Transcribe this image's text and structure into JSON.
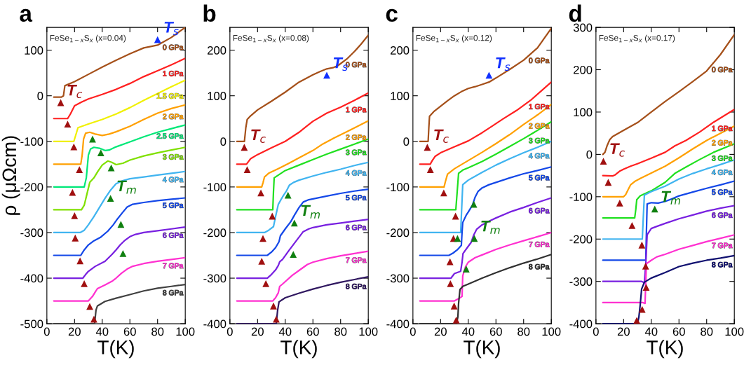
{
  "chart_data": [
    {
      "type": "line",
      "title": "a",
      "xlabel": "T(K)",
      "ylabel": "ρ (μΩcm)",
      "xlim": [
        0,
        100
      ],
      "xticks": [
        0,
        20,
        40,
        60,
        80,
        100
      ],
      "ylim": [
        -500,
        150
      ],
      "yticks": [
        -500,
        -400,
        -300,
        -200,
        -100,
        0,
        100
      ],
      "annotations": [
        "FeSe$_{1−x}$S$_{x}$ (x=0.04)"
      ],
      "series": [
        {
          "name": "0 GPa",
          "color": "#a5501a",
          "x": [
            5,
            10.5,
            12,
            13,
            20,
            30,
            40,
            50,
            60,
            70,
            80,
            90,
            100
          ],
          "values": [
            -3,
            -3,
            0,
            22,
            31,
            47,
            63,
            78,
            92,
            105,
            111,
            128,
            150
          ]
        },
        {
          "name": "1 GPa",
          "color": "#ff2020",
          "x": [
            5,
            15,
            17,
            20,
            25,
            30,
            40,
            50,
            60,
            70,
            80,
            90,
            100
          ],
          "values": [
            -50,
            -50,
            -40,
            -22,
            -14,
            -7,
            3,
            14,
            27,
            42,
            55,
            68,
            82
          ]
        },
        {
          "name": "1.5 GPa",
          "color": "#f0f000",
          "x": [
            5,
            19.5,
            21,
            22.5,
            30,
            40,
            50,
            60,
            70,
            80,
            90,
            100
          ],
          "values": [
            -100,
            -100,
            -85,
            -70,
            -62,
            -52,
            -40,
            -26,
            -10,
            5,
            20,
            34
          ]
        },
        {
          "name": "2 GPa",
          "color": "#ffa000",
          "x": [
            5,
            24.5,
            25.5,
            26.5,
            28,
            31,
            35,
            40,
            45,
            50,
            60,
            70,
            80,
            90,
            100
          ],
          "values": [
            -150,
            -150,
            -130,
            -95,
            -82,
            -80,
            -84,
            -87,
            -84,
            -79,
            -67,
            -52,
            -38,
            -28,
            -20
          ]
        },
        {
          "name": "2.5 GPa",
          "color": "#00e878",
          "x": [
            5,
            27,
            28.5,
            30,
            31.5,
            34,
            38,
            42,
            45,
            50,
            60,
            70,
            80,
            90,
            100
          ],
          "values": [
            -200,
            -200,
            -180,
            -130,
            -117,
            -113,
            -115,
            -120,
            -119,
            -112,
            -101,
            -90,
            -80,
            -72,
            -64
          ]
        },
        {
          "name": "3 GPa",
          "color": "#80e000",
          "x": [
            5,
            25,
            27,
            29,
            31,
            34,
            37,
            40,
            44,
            47,
            50,
            55,
            60,
            70,
            80,
            90,
            100
          ],
          "values": [
            -250,
            -250,
            -240,
            -215,
            -190,
            -180,
            -165,
            -152,
            -143,
            -146,
            -151,
            -148,
            -141,
            -132,
            -125,
            -119,
            -113
          ]
        },
        {
          "name": "4 GPa",
          "color": "#40b4f0",
          "x": [
            5,
            24,
            27,
            30,
            34,
            37,
            42,
            46,
            50,
            55,
            60,
            70,
            80,
            90,
            100
          ],
          "values": [
            -300,
            -300,
            -295,
            -283,
            -265,
            -250,
            -225,
            -207,
            -193,
            -186,
            -182,
            -178,
            -174,
            -170,
            -166
          ]
        },
        {
          "name": "5 GPa",
          "color": "#1448e8",
          "x": [
            5,
            24.5,
            27,
            30,
            34,
            39,
            44,
            48,
            51,
            55,
            58,
            62,
            70,
            80,
            90,
            100
          ],
          "values": [
            -350,
            -350,
            -338,
            -327,
            -318,
            -310,
            -297,
            -283,
            -270,
            -255,
            -244,
            -238,
            -234,
            -230,
            -227,
            -224
          ]
        },
        {
          "name": "6 GPa",
          "color": "#7820e0",
          "x": [
            5,
            26,
            28,
            30,
            35,
            42,
            47,
            50,
            53,
            56,
            60,
            64,
            70,
            80,
            90,
            100
          ],
          "values": [
            -400,
            -400,
            -392,
            -385,
            -374,
            -363,
            -348,
            -338,
            -327,
            -318,
            -309,
            -304,
            -300,
            -296,
            -292,
            -288
          ]
        },
        {
          "name": "7 GPa",
          "color": "#ff30d0",
          "x": [
            5,
            30,
            33,
            35,
            36.5,
            42,
            47,
            50,
            54,
            58,
            62,
            70,
            80,
            90,
            100
          ],
          "values": [
            -450,
            -450,
            -440,
            -430,
            -423,
            -415,
            -407,
            -400,
            -389,
            -380,
            -374,
            -368,
            -363,
            -359,
            -355
          ]
        },
        {
          "name": "8 GPa",
          "color": "#404040",
          "x": [
            5,
            34.5,
            35.5,
            36.5,
            42,
            50,
            60,
            70,
            80,
            90,
            100
          ],
          "values": [
            -500,
            -500,
            -470,
            -461,
            -451,
            -444,
            -436,
            -428,
            -422,
            -418,
            -414
          ]
        },
        {
          "type": "scatter",
          "marker": "triangle",
          "color": "#a01010",
          "name": "T$_{c}$",
          "x": [
            10,
            15,
            19.5,
            23.5,
            18.5,
            20,
            20.5,
            24,
            27,
            31,
            34
          ],
          "values": [
            -15,
            -62,
            -112,
            -162,
            -212,
            -263,
            -312,
            -362,
            -412,
            -462,
            -490
          ]
        },
        {
          "type": "scatter",
          "marker": "triangle",
          "color": "#108010",
          "name": "T$_{m}$",
          "x": [
            46,
            33,
            39,
            46.5,
            53.5,
            55
          ],
          "values": [
            -225,
            -95,
            -125,
            -158,
            -282,
            -346
          ]
        },
        {
          "type": "scatter",
          "marker": "triangle",
          "color": "#1030ff",
          "name": "T$_{s}$",
          "x": [
            80
          ],
          "values": [
            123
          ]
        }
      ]
    },
    {
      "type": "line",
      "title": "b",
      "xlabel": "T(K)",
      "xlim": [
        0,
        100
      ],
      "xticks": [
        0,
        20,
        40,
        60,
        80,
        100
      ],
      "ylim": [
        -400,
        250
      ],
      "yticks": [
        -400,
        -300,
        -200,
        -100,
        0,
        100,
        200
      ],
      "annotations": [
        "FeSe$_{1−x}$S$_{x}$ (x=0.08)"
      ],
      "series": [
        {
          "name": "0 GPa",
          "color": "#a5501a",
          "x": [
            5,
            10.5,
            11.5,
            12.5,
            15,
            20,
            30,
            40,
            50,
            60,
            65,
            70,
            75,
            78,
            85,
            90,
            95,
            100
          ],
          "values": [
            0,
            0,
            30,
            48,
            56,
            69,
            88,
            108,
            130,
            146,
            153,
            159,
            162,
            166,
            182,
            197,
            214,
            233
          ]
        },
        {
          "name": "1 GPa",
          "color": "#ff2020",
          "x": [
            5,
            12,
            13.5,
            15,
            20,
            30,
            40,
            50,
            55,
            60,
            70,
            80,
            90,
            100
          ],
          "values": [
            -50,
            -50,
            -44,
            -38,
            -29,
            -14,
            0,
            20,
            32,
            44,
            62,
            75,
            90,
            106
          ]
        },
        {
          "name": "2 GPa",
          "color": "#ffa000",
          "x": [
            5,
            23,
            24,
            25,
            28,
            35,
            42,
            50,
            60,
            67,
            75,
            85,
            100
          ],
          "values": [
            -100,
            -100,
            -90,
            -78,
            -70,
            -60,
            -49,
            -36,
            -20,
            -6,
            7,
            22,
            45
          ]
        },
        {
          "name": "3 GPa",
          "color": "#20e020",
          "x": [
            5,
            31,
            31.5,
            32,
            40,
            50,
            60,
            70,
            80,
            90,
            100
          ],
          "values": [
            -150,
            -150,
            -110,
            -80,
            -64,
            -52,
            -40,
            -28,
            -17,
            -6,
            5
          ]
        },
        {
          "name": "4 GPa",
          "color": "#40b4f0",
          "x": [
            5,
            25,
            28,
            31.5,
            33,
            35,
            38,
            41,
            43,
            46,
            50,
            60,
            70,
            80,
            90,
            100
          ],
          "values": [
            -200,
            -200,
            -195,
            -187,
            -165,
            -138,
            -122,
            -108,
            -96,
            -90,
            -85,
            -76,
            -68,
            -61,
            -53,
            -46
          ]
        },
        {
          "name": "5 GPa",
          "color": "#1448e8",
          "x": [
            5,
            27,
            30,
            33,
            35.5,
            36.5,
            40,
            44,
            47,
            50,
            53,
            57,
            70,
            80,
            90,
            100
          ],
          "values": [
            -250,
            -250,
            -243,
            -233,
            -220,
            -207,
            -192,
            -176,
            -160,
            -145,
            -133,
            -128,
            -120,
            -114,
            -109,
            -105
          ]
        },
        {
          "name": "6 GPa",
          "color": "#7820e0",
          "x": [
            5,
            27,
            30,
            33,
            35,
            36,
            38,
            43,
            48,
            53,
            57,
            60,
            70,
            80,
            90,
            100
          ],
          "values": [
            -300,
            -300,
            -292,
            -282,
            -272,
            -264,
            -259,
            -238,
            -218,
            -198,
            -192,
            -189,
            -183,
            -179,
            -175,
            -171
          ]
        },
        {
          "name": "7 GPa",
          "color": "#ff30d0",
          "x": [
            5,
            31,
            33,
            35,
            36,
            38,
            45,
            50,
            56,
            60,
            70,
            80,
            90,
            100
          ],
          "values": [
            -350,
            -350,
            -343,
            -332,
            -318,
            -313,
            -294,
            -283,
            -270,
            -265,
            -257,
            -251,
            -246,
            -241
          ]
        },
        {
          "name": "8 GPa",
          "color": "#301860",
          "x": [
            5,
            33.5,
            34.5,
            35.5,
            40,
            50,
            60,
            70,
            80,
            90,
            100
          ],
          "values": [
            -400,
            -400,
            -370,
            -352,
            -343,
            -333,
            -324,
            -316,
            -309,
            -303,
            -297
          ]
        },
        {
          "type": "scatter",
          "marker": "triangle",
          "color": "#a01010",
          "name": "T$_{c}$",
          "x": [
            10.4,
            12.5,
            22.4,
            30.6,
            23.9,
            23,
            26,
            31.5,
            33.5
          ],
          "values": [
            -13,
            -62,
            -113,
            -164,
            -213,
            -263,
            -312,
            -361,
            -390
          ]
        },
        {
          "type": "scatter",
          "marker": "triangle",
          "color": "#108010",
          "name": "T$_{m}$",
          "x": [
            46.6,
            42,
            45.8
          ],
          "values": [
            -179,
            -118,
            -248
          ]
        },
        {
          "type": "scatter",
          "marker": "triangle",
          "color": "#1030ff",
          "name": "T$_{s}$",
          "x": [
            70
          ],
          "values": [
            145
          ]
        }
      ]
    },
    {
      "type": "line",
      "title": "c",
      "xlabel": "T(K)",
      "xlim": [
        0,
        100
      ],
      "xticks": [
        0,
        20,
        40,
        60,
        80,
        100
      ],
      "ylim": [
        -400,
        250
      ],
      "yticks": [
        -400,
        -300,
        -200,
        -100,
        0,
        100,
        200
      ],
      "annotations": [
        "FeSe$_{1−x}$S$_{x}$ (x=0.12)"
      ],
      "series": [
        {
          "name": "0 GPa",
          "color": "#a5501a",
          "x": [
            5,
            11,
            11.5,
            12,
            15,
            20,
            25,
            30,
            35,
            40,
            45,
            50,
            55,
            60,
            70,
            80,
            90,
            100
          ],
          "values": [
            0,
            0,
            30,
            55,
            65,
            77,
            89,
            100,
            109,
            116,
            120,
            125,
            130,
            139,
            158,
            178,
            205,
            248
          ]
        },
        {
          "name": "1 GPa",
          "color": "#ff2020",
          "x": [
            5,
            12.5,
            14,
            16,
            20,
            30,
            40,
            50,
            57,
            65,
            75,
            85,
            100
          ],
          "values": [
            -50,
            -50,
            -42,
            -33,
            -25,
            -12,
            1,
            19,
            33,
            49,
            68,
            90,
            130
          ]
        },
        {
          "name": "2 GPa",
          "color": "#ffa000",
          "x": [
            5,
            22.5,
            23.5,
            25,
            30,
            40,
            50,
            60,
            70,
            80,
            90,
            100
          ],
          "values": [
            -100,
            -100,
            -88,
            -72,
            -60,
            -42,
            -24,
            -5,
            15,
            37,
            58,
            81
          ]
        },
        {
          "name": "3 GPa",
          "color": "#20e020",
          "x": [
            5,
            31,
            32,
            33,
            36,
            40,
            50,
            60,
            70,
            80,
            90,
            100
          ],
          "values": [
            -150,
            -150,
            -110,
            -70,
            -63,
            -58,
            -44,
            -28,
            -11,
            6,
            24,
            43
          ]
        },
        {
          "name": "4 GPa",
          "color": "#40b4f0",
          "x": [
            5,
            34.5,
            35.2,
            36,
            40,
            50,
            60,
            70,
            80,
            90,
            100
          ],
          "values": [
            -200,
            -200,
            -150,
            -95,
            -85,
            -68,
            -52,
            -38,
            -25,
            -13,
            0
          ]
        },
        {
          "name": "5 GPa",
          "color": "#1448e8",
          "x": [
            5,
            26,
            29,
            32,
            35,
            35.5,
            36,
            38.5,
            40,
            43,
            45,
            47,
            50,
            55,
            60,
            70,
            80,
            90,
            100
          ],
          "values": [
            -250,
            -250,
            -245,
            -238,
            -228,
            -200,
            -178,
            -162,
            -155,
            -140,
            -122,
            -110,
            -102,
            -95,
            -90,
            -80,
            -71,
            -64,
            -56
          ]
        },
        {
          "name": "6 GPa",
          "color": "#7820e0",
          "x": [
            5,
            27.5,
            30,
            34.5,
            35.5,
            36.2,
            40,
            42,
            44,
            46,
            50,
            55,
            60,
            70,
            80,
            90,
            100
          ],
          "values": [
            -300,
            -300,
            -290,
            -285,
            -265,
            -246,
            -230,
            -222,
            -205,
            -193,
            -183,
            -175,
            -168,
            -155,
            -145,
            -134,
            -124
          ]
        },
        {
          "name": "7 GPa",
          "color": "#ff30d0",
          "x": [
            5,
            30,
            33,
            35.5,
            36,
            38,
            40,
            45,
            50,
            60,
            70,
            80,
            90,
            100
          ],
          "values": [
            -350,
            -350,
            -345,
            -340,
            -295,
            -275,
            -265,
            -255,
            -249,
            -237,
            -227,
            -218,
            -209,
            -200
          ]
        },
        {
          "name": "8 GPa",
          "color": "#303030",
          "x": [
            5,
            31.5,
            32.5,
            33,
            34,
            36,
            40,
            50,
            60,
            70,
            80,
            90,
            100
          ],
          "values": [
            -400,
            -400,
            -385,
            -355,
            -325,
            -318,
            -313,
            -300,
            -288,
            -277,
            -267,
            -258,
            -248
          ]
        },
        {
          "type": "scatter",
          "marker": "triangle",
          "color": "#a01010",
          "name": "T$_{c}$",
          "x": [
            10.4,
            12.6,
            22.3,
            30.8,
            29.3,
            26.8,
            27.1,
            29.8,
            31.3
          ],
          "values": [
            -13,
            -62,
            -113,
            -164,
            -213,
            -264,
            -312,
            -361,
            -392
          ]
        },
        {
          "type": "scatter",
          "marker": "triangle",
          "color": "#108010",
          "name": "T$_{m}$",
          "x": [
            44.4,
            32.2,
            44,
            38.5
          ],
          "values": [
            -213,
            -213,
            -138,
            -280
          ]
        },
        {
          "type": "scatter",
          "marker": "triangle",
          "color": "#1030ff",
          "name": "T$_{s}$",
          "x": [
            55
          ],
          "values": [
            145
          ]
        }
      ]
    },
    {
      "type": "line",
      "title": "d",
      "xlabel": "T(K)",
      "xlim": [
        0,
        100
      ],
      "xticks": [
        0,
        20,
        40,
        60,
        80,
        100
      ],
      "ylim": [
        -400,
        300
      ],
      "yticks": [
        -400,
        -300,
        -200,
        -100,
        0,
        100,
        200,
        300
      ],
      "annotations": [
        "FeSe$_{1−x}$S$_{x}$ (x=0.17)"
      ],
      "series": [
        {
          "name": "0 GPa",
          "color": "#a5501a",
          "x": [
            5,
            6.5,
            8,
            10,
            12,
            20,
            30,
            40,
            50,
            60,
            70,
            80,
            90,
            100
          ],
          "values": [
            0,
            5,
            20,
            35,
            42,
            57,
            75,
            100,
            125,
            148,
            172,
            197,
            236,
            283
          ]
        },
        {
          "name": "1 GPa",
          "color": "#ff2020",
          "x": [
            5,
            12,
            14,
            17,
            20,
            25,
            30,
            40,
            50,
            57,
            65,
            75,
            85,
            100
          ],
          "values": [
            -50,
            -51,
            -48,
            -40,
            -35,
            -28,
            -22,
            -9,
            5,
            20,
            33,
            53,
            76,
            106
          ]
        },
        {
          "name": "2 GPa",
          "color": "#ffa000",
          "x": [
            5,
            20,
            21.5,
            23,
            25,
            28,
            32,
            40,
            50,
            60,
            70,
            80,
            90,
            100
          ],
          "values": [
            -100,
            -100,
            -95,
            -85,
            -72,
            -64,
            -57,
            -44,
            -28,
            -8,
            13,
            33,
            50,
            67
          ]
        },
        {
          "name": "3 GPa",
          "color": "#20e020",
          "x": [
            5,
            28,
            28.8,
            29.5,
            32,
            40,
            50,
            57,
            65,
            75,
            85,
            100
          ],
          "values": [
            -150,
            -150,
            -130,
            -107,
            -98,
            -86,
            -66,
            -45,
            -30,
            -12,
            5,
            25
          ]
        },
        {
          "name": "4 GPa",
          "color": "#40b4f0",
          "x": [
            5,
            33.5,
            34.2,
            35,
            40,
            50,
            60,
            70,
            80,
            90,
            100
          ],
          "values": [
            -200,
            -200,
            -150,
            -96,
            -88,
            -75,
            -58,
            -45,
            -34,
            -24,
            -13
          ]
        },
        {
          "name": "5 GPa",
          "color": "#1448e8",
          "x": [
            5,
            36,
            36.5,
            37,
            40,
            45,
            50,
            55,
            60,
            70,
            80,
            90,
            100
          ],
          "values": [
            -250,
            -250,
            -180,
            -117,
            -114,
            -115,
            -111,
            -105,
            -98,
            -89,
            -80,
            -72,
            -63
          ]
        },
        {
          "name": "6 GPa",
          "color": "#7820e0",
          "x": [
            5,
            33,
            35,
            36,
            37,
            40,
            44,
            50,
            60,
            70,
            80,
            90,
            100
          ],
          "values": [
            -300,
            -300,
            -303,
            -260,
            -190,
            -175,
            -170,
            -163,
            -152,
            -143,
            -134,
            -127,
            -121
          ]
        },
        {
          "name": "7 GPa",
          "color": "#ff30d0",
          "x": [
            5,
            34,
            35.5,
            36,
            36.5,
            40,
            44,
            50,
            60,
            70,
            80,
            90,
            100
          ],
          "values": [
            -350,
            -350,
            -352,
            -300,
            -258,
            -250,
            -242,
            -236,
            -224,
            -215,
            -206,
            -198,
            -190
          ]
        },
        {
          "name": "8 GPa",
          "color": "#101070",
          "x": [
            5,
            30,
            31,
            32,
            33,
            35,
            40,
            50,
            60,
            70,
            80,
            90,
            100
          ],
          "values": [
            -400,
            -400,
            -385,
            -355,
            -318,
            -302,
            -292,
            -279,
            -265,
            -257,
            -250,
            -245,
            -239
          ]
        },
        {
          "type": "scatter",
          "marker": "triangle",
          "color": "#a01010",
          "name": "T$_{c}$",
          "x": [
            5.4,
            8.9,
            17.2,
            26.1,
            33.2,
            35.9,
            36.3,
            33.4,
            29.5
          ],
          "values": [
            -16,
            -66,
            -115,
            -168,
            -214,
            -264,
            -314,
            -366,
            -392
          ]
        },
        {
          "type": "scatter",
          "marker": "triangle",
          "color": "#108010",
          "name": "T$_{m}$",
          "x": [
            42.5
          ],
          "values": [
            -129
          ]
        }
      ]
    }
  ]
}
